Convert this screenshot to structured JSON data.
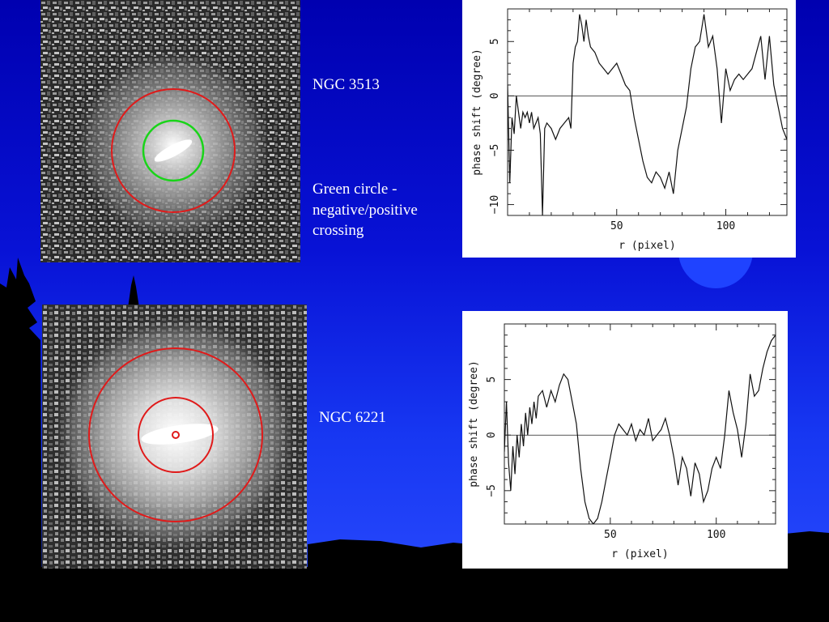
{
  "captions": {
    "top_name": "NGC 3513",
    "top_note": "Green circle - negative/positive crossing",
    "bottom_name": "NGC 6221"
  },
  "colors": {
    "background_top": "#0000b0",
    "background_bottom": "#2b4dff",
    "red_circle": "#e01a1a",
    "green_circle": "#19d419",
    "silhouette": "#000000"
  },
  "chart_data": [
    {
      "type": "line",
      "title": "",
      "xlabel": "r (pixel)",
      "ylabel": "phase shift (degree)",
      "xlim": [
        0,
        128
      ],
      "ylim": [
        -11,
        8
      ],
      "xticks": [
        50,
        100
      ],
      "yticks": [
        -10,
        -5,
        0,
        5
      ],
      "grid": false,
      "reference_line": 0,
      "x": [
        0,
        1,
        2,
        3,
        4,
        5,
        6,
        7,
        8,
        9,
        10,
        11,
        12,
        13,
        14,
        15,
        16,
        17,
        18,
        20,
        22,
        24,
        26,
        28,
        29,
        30,
        31,
        32,
        33,
        34,
        35,
        36,
        37,
        38,
        40,
        42,
        44,
        46,
        48,
        50,
        52,
        54,
        56,
        58,
        60,
        62,
        64,
        66,
        68,
        70,
        72,
        74,
        76,
        78,
        80,
        82,
        84,
        86,
        88,
        90,
        92,
        94,
        96,
        98,
        100,
        102,
        104,
        106,
        108,
        110,
        112,
        114,
        116,
        118,
        120,
        122,
        124,
        126,
        128
      ],
      "y": [
        1,
        -8,
        -2,
        -3.5,
        0,
        -1.5,
        -3,
        -1.5,
        -2,
        -1.5,
        -2.5,
        -1.5,
        -3,
        -2.5,
        -2,
        -3.5,
        -11,
        -3,
        -2.5,
        -3,
        -4,
        -3,
        -2.5,
        -2,
        -3,
        3,
        4.5,
        5,
        7.5,
        6.5,
        5,
        7,
        5.5,
        4.5,
        4,
        3,
        2.5,
        2,
        2.5,
        3,
        2,
        1,
        0.5,
        -2,
        -4,
        -6,
        -7.5,
        -8,
        -7,
        -7.5,
        -8.5,
        -7,
        -9,
        -5,
        -3,
        -1,
        2.5,
        4.5,
        5,
        7.5,
        4.5,
        5.5,
        2.5,
        -2.5,
        2.5,
        0.5,
        1.5,
        2,
        1.5,
        2,
        2.5,
        4,
        5.5,
        1.5,
        5.5,
        1,
        -1,
        -3,
        -4
      ]
    },
    {
      "type": "line",
      "title": "",
      "xlabel": "r (pixel)",
      "ylabel": "phase shift (degree)",
      "xlim": [
        0,
        128
      ],
      "ylim": [
        -8,
        10
      ],
      "xticks": [
        50,
        100
      ],
      "yticks": [
        -5,
        0,
        5
      ],
      "grid": false,
      "reference_line": 0,
      "x": [
        0,
        1,
        2,
        3,
        4,
        5,
        6,
        7,
        8,
        9,
        10,
        11,
        12,
        13,
        14,
        15,
        16,
        18,
        20,
        22,
        24,
        26,
        28,
        30,
        32,
        34,
        36,
        38,
        40,
        42,
        44,
        46,
        48,
        50,
        52,
        54,
        56,
        58,
        60,
        62,
        64,
        66,
        68,
        70,
        72,
        74,
        76,
        78,
        80,
        82,
        84,
        86,
        88,
        90,
        92,
        94,
        96,
        98,
        100,
        102,
        104,
        106,
        108,
        110,
        112,
        114,
        116,
        118,
        120,
        122,
        124,
        126,
        128
      ],
      "y": [
        -1.5,
        3,
        -2.5,
        -5,
        -1,
        -3.5,
        0,
        -2,
        1,
        -1,
        2,
        0,
        2.5,
        1,
        3,
        1.5,
        3.5,
        4,
        2.5,
        4,
        3,
        4.5,
        5.5,
        5,
        3,
        1,
        -3,
        -6,
        -7.5,
        -8,
        -7.5,
        -6,
        -4,
        -2,
        0,
        1,
        0.5,
        0,
        1,
        -0.5,
        0.5,
        0,
        1.5,
        -0.5,
        0,
        0.5,
        1.5,
        0,
        -2,
        -4.5,
        -2,
        -3,
        -5.5,
        -2.5,
        -3.5,
        -6,
        -5,
        -3,
        -2,
        -3,
        0,
        4,
        2,
        0.5,
        -2,
        1,
        5.5,
        3.5,
        4,
        6,
        7.5,
        8.5,
        9
      ]
    }
  ]
}
